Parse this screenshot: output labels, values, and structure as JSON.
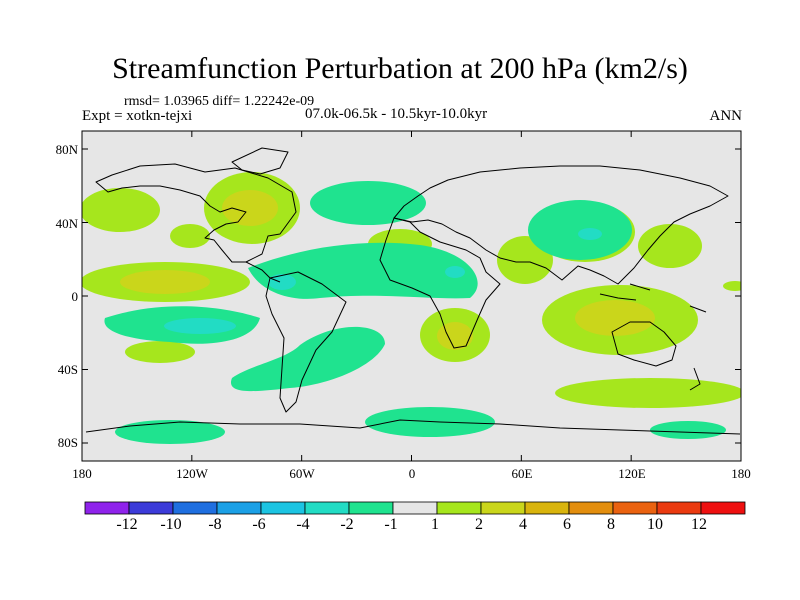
{
  "title": "Streamfunction Perturbation at 200 hPa (km2/s)",
  "stats_line": "rmsd= 1.03965 diff= 1.22242e-09",
  "left_label": "Expt = xotkn-tejxi",
  "center_label": "07.0k-06.5k - 10.5kyr-10.0kyr",
  "right_label": "ANN",
  "lat_ticks": [
    "80N",
    "40N",
    "0",
    "40S",
    "80S"
  ],
  "lon_ticks": [
    "180",
    "120W",
    "60W",
    "0",
    "60E",
    "120E",
    "180"
  ],
  "colorbar": {
    "colors": [
      "#8f23eb",
      "#3c3bd9",
      "#1f6fe0",
      "#1ba0e6",
      "#1cc4e2",
      "#22dcc4",
      "#1fe38f",
      "#e6e6e6",
      "#a6e61d",
      "#cad61b",
      "#d9b40d",
      "#e38e0e",
      "#ea6210",
      "#ea3a10",
      "#ee1010"
    ],
    "labels": [
      "-12",
      "-10",
      "-8",
      "-6",
      "-4",
      "-2",
      "-1",
      "1",
      "2",
      "4",
      "6",
      "8",
      "10",
      "12"
    ]
  },
  "map_colors": {
    "background": "#e6e6e6",
    "pos_2": "#a6e61d",
    "pos_4": "#cad61b",
    "neg_1": "#1fe38f",
    "neg_2": "#22dcc4"
  }
}
